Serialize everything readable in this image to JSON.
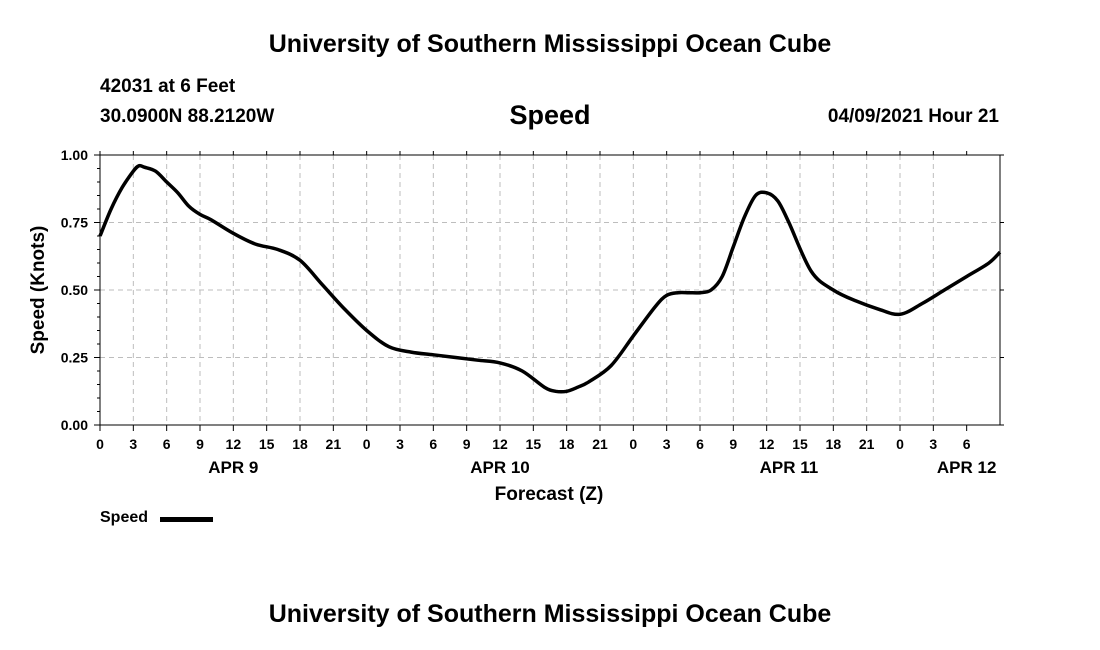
{
  "header": {
    "title": "University of Southern Mississippi Ocean Cube",
    "station": "42031 at 6 Feet",
    "coords": "30.0900N  88.2120W",
    "parameter": "Speed",
    "datetime": "04/09/2021 Hour 21"
  },
  "footer": {
    "title": "University of Southern Mississippi Ocean Cube"
  },
  "legend": {
    "label": "Speed",
    "color": "#000000"
  },
  "chart_data": {
    "type": "line",
    "xlabel": "Forecast (Z)",
    "ylabel": "Speed (Knots)",
    "ylim": [
      0,
      1
    ],
    "yticks": [
      "0.00",
      "0.25",
      "0.50",
      "0.75",
      "1.00"
    ],
    "xlim_hours": [
      0,
      81
    ],
    "xtick_labels": [
      "0",
      "3",
      "6",
      "9",
      "12",
      "15",
      "18",
      "21",
      "0",
      "3",
      "6",
      "9",
      "12",
      "15",
      "18",
      "21",
      "0",
      "3",
      "6",
      "9",
      "12",
      "15",
      "18",
      "21",
      "0",
      "3",
      "6"
    ],
    "date_labels": [
      {
        "label": "APR 9",
        "hour": 12
      },
      {
        "label": "APR 10",
        "hour": 36
      },
      {
        "label": "APR 11",
        "hour": 62
      },
      {
        "label": "APR 12",
        "hour": 78
      }
    ],
    "grid": true,
    "series": [
      {
        "name": "Speed",
        "color": "#000000",
        "x_hours": [
          0,
          1,
          2,
          3,
          3.5,
          4,
          5,
          6,
          7,
          8,
          9,
          10,
          12,
          14,
          16,
          18,
          20,
          22,
          24,
          26,
          28,
          30,
          32,
          34,
          36,
          38,
          40,
          41,
          42,
          43,
          44,
          46,
          48,
          50,
          51,
          52,
          53,
          54,
          55,
          56,
          57,
          58,
          59,
          60,
          61,
          62,
          64,
          66,
          68,
          70,
          72,
          74,
          76,
          78,
          80,
          81
        ],
        "values": [
          0.7,
          0.8,
          0.88,
          0.94,
          0.96,
          0.955,
          0.94,
          0.9,
          0.86,
          0.81,
          0.78,
          0.76,
          0.71,
          0.67,
          0.65,
          0.61,
          0.52,
          0.43,
          0.35,
          0.29,
          0.27,
          0.26,
          0.25,
          0.24,
          0.23,
          0.2,
          0.14,
          0.125,
          0.125,
          0.14,
          0.16,
          0.22,
          0.33,
          0.44,
          0.48,
          0.49,
          0.49,
          0.49,
          0.5,
          0.55,
          0.66,
          0.77,
          0.85,
          0.86,
          0.83,
          0.75,
          0.57,
          0.5,
          0.46,
          0.43,
          0.41,
          0.45,
          0.5,
          0.55,
          0.6,
          0.64
        ]
      }
    ]
  }
}
